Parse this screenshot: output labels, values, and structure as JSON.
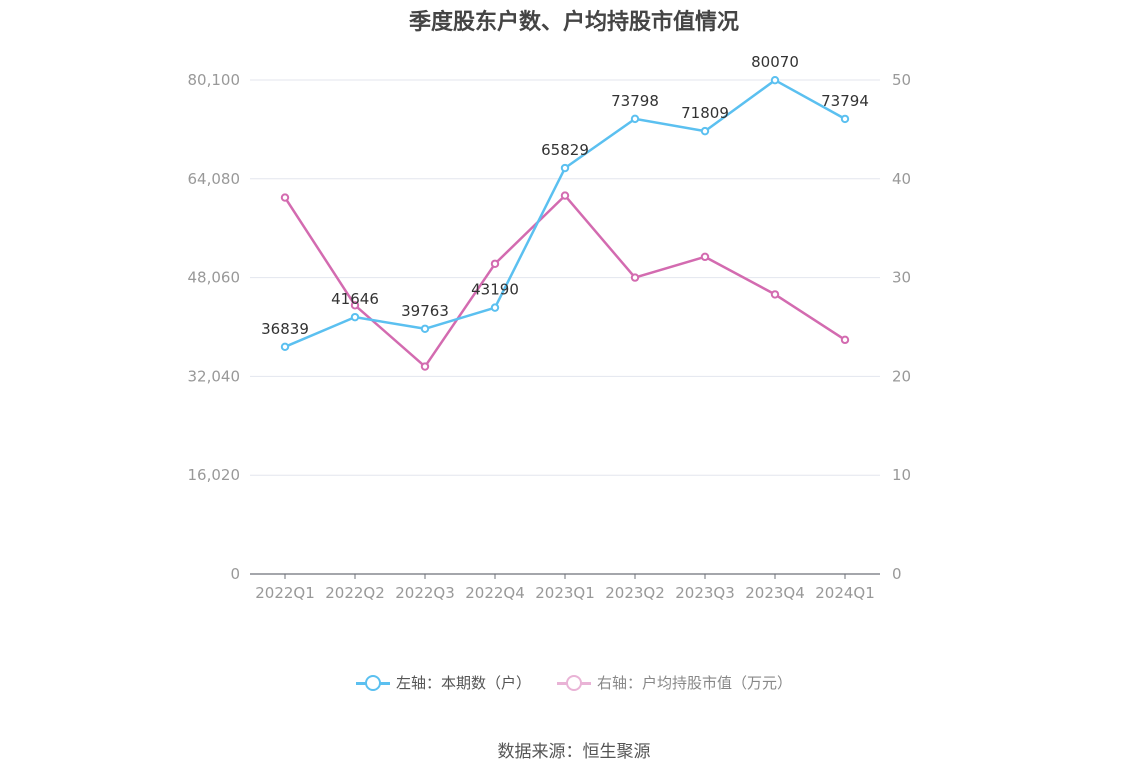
{
  "chart_data": {
    "type": "line",
    "title": "季度股东户数、户均持股市值情况",
    "categories": [
      "2022Q1",
      "2022Q2",
      "2022Q3",
      "2022Q4",
      "2023Q1",
      "2023Q2",
      "2023Q3",
      "2023Q4",
      "2024Q1"
    ],
    "left_axis": {
      "ylim": [
        0,
        80100
      ],
      "ticks": [
        "0",
        "16,020",
        "32,040",
        "48,060",
        "64,080",
        "80,100"
      ]
    },
    "right_axis": {
      "ylim": [
        0,
        50
      ],
      "ticks": [
        "0",
        "10",
        "20",
        "30",
        "40",
        "50"
      ]
    },
    "series": [
      {
        "name": "左轴：本期数（户）",
        "axis": "left",
        "color": "#5bc0f0",
        "values": [
          36839,
          41646,
          39763,
          43190,
          65829,
          73798,
          71809,
          80070,
          73794
        ],
        "labels": [
          "36839",
          "41646",
          "39763",
          "43190",
          "65829",
          "73798",
          "71809",
          "80070",
          "73794"
        ]
      },
      {
        "name": "右轴：户均持股市值（万元）",
        "axis": "right",
        "color": "#d36bb0",
        "values": [
          38.1,
          27.2,
          21.0,
          31.4,
          38.3,
          30.0,
          32.1,
          28.3,
          23.7
        ]
      }
    ],
    "grid": true,
    "legend_position": "bottom"
  },
  "source": "数据来源：恒生聚源"
}
